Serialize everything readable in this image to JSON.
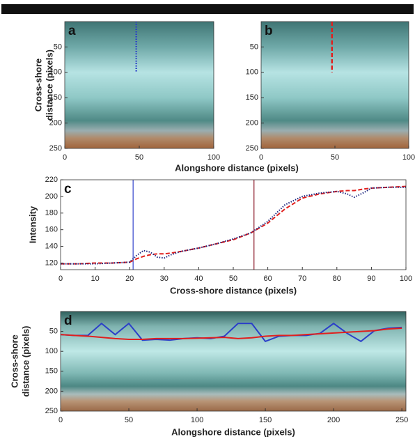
{
  "chart_data": [
    {
      "type": "image",
      "label": "a",
      "ylabel": [
        "Cross-shore",
        "distance (pixels)"
      ],
      "xlabel": "Alongshore distance (pixels)",
      "xlim": [
        0,
        100
      ],
      "xticks": [
        0,
        50,
        100
      ],
      "ylim": [
        0,
        250
      ],
      "yticks": [
        50,
        100,
        150,
        200,
        250
      ],
      "yreverse": true,
      "series": [
        {
          "color": "#2b3fc9",
          "style": "dotted",
          "x": [
            48,
            48
          ],
          "values": [
            0,
            100
          ]
        }
      ]
    },
    {
      "type": "image",
      "label": "b",
      "xlim": [
        0,
        100
      ],
      "xticks": [
        0,
        50,
        100
      ],
      "ylim": [
        0,
        250
      ],
      "yticks": [
        50,
        100,
        150,
        200,
        250
      ],
      "yreverse": true,
      "series": [
        {
          "color": "#e0201e",
          "style": "dashed",
          "x": [
            48,
            48
          ],
          "values": [
            0,
            100
          ]
        }
      ]
    },
    {
      "type": "line",
      "label": "c",
      "ylabel": [
        "Intensity"
      ],
      "xlabel": "Cross-shore distance (pixels)",
      "xlim": [
        0,
        100
      ],
      "xticks": [
        0,
        10,
        20,
        30,
        40,
        50,
        60,
        70,
        80,
        90,
        100
      ],
      "ylim": [
        112,
        220
      ],
      "yticks": [
        120,
        140,
        160,
        180,
        200,
        220
      ],
      "x": [
        0,
        5,
        10,
        15,
        20,
        22,
        24,
        26,
        28,
        30,
        32,
        35,
        40,
        45,
        50,
        55,
        60,
        65,
        70,
        75,
        80,
        83,
        85,
        88,
        90,
        95,
        100
      ],
      "series": [
        {
          "color": "#e0201e",
          "style": "dashed",
          "values": [
            119,
            119,
            120,
            120,
            121,
            125,
            128,
            130,
            131,
            131,
            132,
            134,
            138,
            143,
            148,
            156,
            168,
            185,
            198,
            203,
            206,
            207,
            207,
            209,
            210,
            211,
            212
          ]
        },
        {
          "color": "#1a237e",
          "style": "dotted",
          "values": [
            119,
            119,
            119,
            120,
            121,
            129,
            135,
            133,
            127,
            126,
            130,
            134,
            138,
            143,
            149,
            156,
            170,
            190,
            200,
            204,
            206,
            203,
            199,
            205,
            210,
            211,
            211
          ]
        }
      ],
      "vlines": [
        {
          "x": 21,
          "color": "#3344cc"
        },
        {
          "x": 56,
          "color": "#8b1a2b"
        }
      ]
    },
    {
      "type": "image",
      "label": "d",
      "ylabel": [
        "Cross-shore",
        "distance (pixels)"
      ],
      "xlabel": "Alongshore distance (pixels)",
      "xlim": [
        0,
        253
      ],
      "xticks": [
        0,
        50,
        100,
        150,
        200,
        250
      ],
      "ylim": [
        0,
        250
      ],
      "yticks": [
        50,
        100,
        150,
        200,
        250
      ],
      "yreverse": true,
      "x": [
        0,
        10,
        20,
        30,
        40,
        50,
        60,
        70,
        80,
        90,
        100,
        110,
        120,
        130,
        140,
        150,
        160,
        170,
        180,
        190,
        200,
        210,
        220,
        230,
        240,
        250
      ],
      "series": [
        {
          "color": "#2b3fc9",
          "style": "solid",
          "values": [
            58,
            60,
            60,
            30,
            58,
            30,
            72,
            70,
            72,
            68,
            66,
            68,
            62,
            30,
            30,
            75,
            62,
            60,
            60,
            55,
            30,
            55,
            75,
            48,
            42,
            40
          ]
        },
        {
          "color": "#e0201e",
          "style": "solid",
          "values": [
            58,
            60,
            62,
            65,
            68,
            70,
            70,
            68,
            68,
            68,
            67,
            66,
            65,
            68,
            66,
            62,
            60,
            60,
            58,
            56,
            54,
            52,
            50,
            48,
            44,
            42
          ]
        }
      ]
    }
  ]
}
